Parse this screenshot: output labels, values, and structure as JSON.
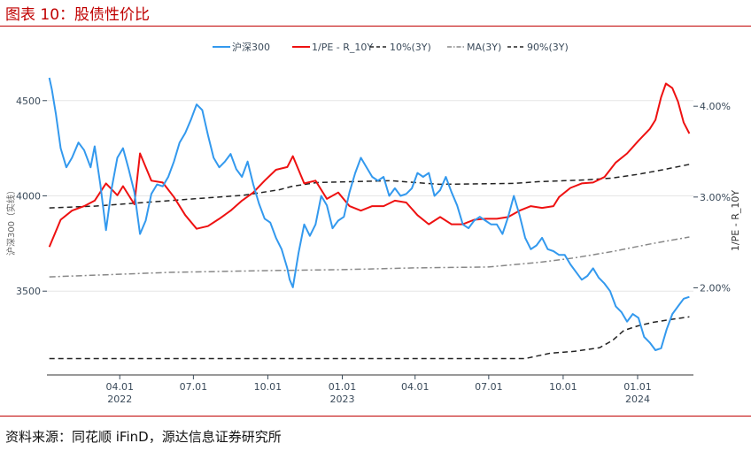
{
  "figure": {
    "title": "图表 10：股债性价比",
    "source": "资料来源：同花顺 iFinD，源达信息证券研究所"
  },
  "colors": {
    "title_red": "#c00000",
    "csi300": "#3399ee",
    "ey_spread": "#ee1111",
    "band_dash": "#222222",
    "ma_dashdot": "#888888"
  },
  "chart_data": {
    "type": "line",
    "xlabel": "",
    "ylabel_left": "沪深300（实线）",
    "ylabel_right": "1/PE - R_10Y",
    "xlim": [
      "2022-01-01",
      "2024-03-10"
    ],
    "ylim_left": [
      3060,
      4680
    ],
    "ylim_right": [
      0.0104,
      0.0444
    ],
    "y_left_ticks": [
      3500,
      4000,
      4500
    ],
    "y_left_tick_labels": [
      "3500",
      "4000",
      "4500"
    ],
    "y_right_ticks": [
      0.02,
      0.03,
      0.04
    ],
    "y_right_tick_labels": [
      "2.00%",
      "3.00%",
      "4.00%"
    ],
    "x_ticks": [
      {
        "date": "2022-04-01",
        "label": "04.01",
        "year": "2022"
      },
      {
        "date": "2022-07-01",
        "label": "07.01",
        "year": ""
      },
      {
        "date": "2022-10-01",
        "label": "10.01",
        "year": ""
      },
      {
        "date": "2023-01-01",
        "label": "01.01",
        "year": "2023"
      },
      {
        "date": "2023-04-01",
        "label": "04.01",
        "year": ""
      },
      {
        "date": "2023-07-01",
        "label": "07.01",
        "year": ""
      },
      {
        "date": "2023-10-01",
        "label": "10.01",
        "year": ""
      },
      {
        "date": "2024-01-01",
        "label": "01.01",
        "year": "2024"
      }
    ],
    "grid": {
      "horizontal": true,
      "vertical": false
    },
    "legend_position": "top",
    "series": [
      {
        "name": "沪深300",
        "axis": "left",
        "style": "solid",
        "color": "#3399ee",
        "points": [
          [
            "2022-01-04",
            4620
          ],
          [
            "2022-01-07",
            4560
          ],
          [
            "2022-01-12",
            4430
          ],
          [
            "2022-01-18",
            4250
          ],
          [
            "2022-01-25",
            4150
          ],
          [
            "2022-02-01",
            4200
          ],
          [
            "2022-02-09",
            4280
          ],
          [
            "2022-02-16",
            4240
          ],
          [
            "2022-02-24",
            4150
          ],
          [
            "2022-03-01",
            4260
          ],
          [
            "2022-03-08",
            4060
          ],
          [
            "2022-03-15",
            3820
          ],
          [
            "2022-03-22",
            4040
          ],
          [
            "2022-03-29",
            4200
          ],
          [
            "2022-04-05",
            4250
          ],
          [
            "2022-04-12",
            4140
          ],
          [
            "2022-04-19",
            4020
          ],
          [
            "2022-04-26",
            3800
          ],
          [
            "2022-05-03",
            3870
          ],
          [
            "2022-05-10",
            4010
          ],
          [
            "2022-05-17",
            4060
          ],
          [
            "2022-05-24",
            4050
          ],
          [
            "2022-05-31",
            4100
          ],
          [
            "2022-06-07",
            4180
          ],
          [
            "2022-06-14",
            4280
          ],
          [
            "2022-06-21",
            4330
          ],
          [
            "2022-06-28",
            4400
          ],
          [
            "2022-07-05",
            4480
          ],
          [
            "2022-07-12",
            4450
          ],
          [
            "2022-07-19",
            4320
          ],
          [
            "2022-07-26",
            4200
          ],
          [
            "2022-08-02",
            4150
          ],
          [
            "2022-08-09",
            4180
          ],
          [
            "2022-08-16",
            4220
          ],
          [
            "2022-08-23",
            4140
          ],
          [
            "2022-08-30",
            4100
          ],
          [
            "2022-09-06",
            4180
          ],
          [
            "2022-09-13",
            4060
          ],
          [
            "2022-09-20",
            3960
          ],
          [
            "2022-09-27",
            3880
          ],
          [
            "2022-10-04",
            3860
          ],
          [
            "2022-10-11",
            3780
          ],
          [
            "2022-10-18",
            3720
          ],
          [
            "2022-10-25",
            3620
          ],
          [
            "2022-10-28",
            3560
          ],
          [
            "2022-11-01",
            3520
          ],
          [
            "2022-11-08",
            3700
          ],
          [
            "2022-11-15",
            3850
          ],
          [
            "2022-11-22",
            3790
          ],
          [
            "2022-11-29",
            3850
          ],
          [
            "2022-12-06",
            4000
          ],
          [
            "2022-12-13",
            3950
          ],
          [
            "2022-12-20",
            3830
          ],
          [
            "2022-12-27",
            3870
          ],
          [
            "2023-01-03",
            3890
          ],
          [
            "2023-01-10",
            4020
          ],
          [
            "2023-01-17",
            4120
          ],
          [
            "2023-01-24",
            4200
          ],
          [
            "2023-01-31",
            4150
          ],
          [
            "2023-02-07",
            4100
          ],
          [
            "2023-02-14",
            4080
          ],
          [
            "2023-02-21",
            4100
          ],
          [
            "2023-02-28",
            4000
          ],
          [
            "2023-03-07",
            4040
          ],
          [
            "2023-03-14",
            4000
          ],
          [
            "2023-03-21",
            4010
          ],
          [
            "2023-03-28",
            4040
          ],
          [
            "2023-04-04",
            4120
          ],
          [
            "2023-04-11",
            4100
          ],
          [
            "2023-04-18",
            4120
          ],
          [
            "2023-04-25",
            4000
          ],
          [
            "2023-05-02",
            4030
          ],
          [
            "2023-05-09",
            4100
          ],
          [
            "2023-05-16",
            4020
          ],
          [
            "2023-05-23",
            3950
          ],
          [
            "2023-05-30",
            3850
          ],
          [
            "2023-06-06",
            3830
          ],
          [
            "2023-06-13",
            3870
          ],
          [
            "2023-06-20",
            3890
          ],
          [
            "2023-06-27",
            3870
          ],
          [
            "2023-07-04",
            3850
          ],
          [
            "2023-07-11",
            3850
          ],
          [
            "2023-07-18",
            3800
          ],
          [
            "2023-07-25",
            3890
          ],
          [
            "2023-08-01",
            4000
          ],
          [
            "2023-08-08",
            3900
          ],
          [
            "2023-08-15",
            3780
          ],
          [
            "2023-08-22",
            3720
          ],
          [
            "2023-08-29",
            3740
          ],
          [
            "2023-09-05",
            3780
          ],
          [
            "2023-09-12",
            3720
          ],
          [
            "2023-09-19",
            3710
          ],
          [
            "2023-09-26",
            3690
          ],
          [
            "2023-10-03",
            3690
          ],
          [
            "2023-10-10",
            3640
          ],
          [
            "2023-10-17",
            3600
          ],
          [
            "2023-10-24",
            3560
          ],
          [
            "2023-10-31",
            3580
          ],
          [
            "2023-11-07",
            3620
          ],
          [
            "2023-11-14",
            3570
          ],
          [
            "2023-11-21",
            3540
          ],
          [
            "2023-11-28",
            3500
          ],
          [
            "2023-12-05",
            3420
          ],
          [
            "2023-12-12",
            3390
          ],
          [
            "2023-12-19",
            3340
          ],
          [
            "2023-12-26",
            3380
          ],
          [
            "2024-01-02",
            3360
          ],
          [
            "2024-01-09",
            3260
          ],
          [
            "2024-01-16",
            3230
          ],
          [
            "2024-01-23",
            3190
          ],
          [
            "2024-01-30",
            3200
          ],
          [
            "2024-02-06",
            3300
          ],
          [
            "2024-02-13",
            3380
          ],
          [
            "2024-02-20",
            3420
          ],
          [
            "2024-02-27",
            3460
          ],
          [
            "2024-03-05",
            3470
          ]
        ]
      },
      {
        "name": "1/PE - R_10Y",
        "axis": "right",
        "style": "solid",
        "color": "#ee1111",
        "points": [
          [
            "2022-01-04",
            0.0245
          ],
          [
            "2022-01-18",
            0.0275
          ],
          [
            "2022-02-01",
            0.0285
          ],
          [
            "2022-02-16",
            0.029
          ],
          [
            "2022-03-01",
            0.0296
          ],
          [
            "2022-03-15",
            0.0315
          ],
          [
            "2022-03-29",
            0.0302
          ],
          [
            "2022-04-05",
            0.0312
          ],
          [
            "2022-04-19",
            0.0292
          ],
          [
            "2022-04-26",
            0.0348
          ],
          [
            "2022-05-10",
            0.0318
          ],
          [
            "2022-05-24",
            0.0316
          ],
          [
            "2022-06-07",
            0.03
          ],
          [
            "2022-06-21",
            0.028
          ],
          [
            "2022-07-05",
            0.0265
          ],
          [
            "2022-07-19",
            0.0268
          ],
          [
            "2022-08-02",
            0.0276
          ],
          [
            "2022-08-16",
            0.0285
          ],
          [
            "2022-08-30",
            0.0296
          ],
          [
            "2022-09-13",
            0.0305
          ],
          [
            "2022-09-27",
            0.0318
          ],
          [
            "2022-10-11",
            0.033
          ],
          [
            "2022-10-25",
            0.0333
          ],
          [
            "2022-11-01",
            0.0345
          ],
          [
            "2022-11-15",
            0.0315
          ],
          [
            "2022-11-29",
            0.0318
          ],
          [
            "2022-12-13",
            0.0298
          ],
          [
            "2022-12-27",
            0.0305
          ],
          [
            "2023-01-10",
            0.029
          ],
          [
            "2023-01-24",
            0.0285
          ],
          [
            "2023-02-07",
            0.029
          ],
          [
            "2023-02-21",
            0.029
          ],
          [
            "2023-03-07",
            0.0296
          ],
          [
            "2023-03-21",
            0.0294
          ],
          [
            "2023-04-04",
            0.028
          ],
          [
            "2023-04-18",
            0.027
          ],
          [
            "2023-05-02",
            0.0278
          ],
          [
            "2023-05-16",
            0.027
          ],
          [
            "2023-05-30",
            0.027
          ],
          [
            "2023-06-13",
            0.0275
          ],
          [
            "2023-06-27",
            0.0276
          ],
          [
            "2023-07-11",
            0.0276
          ],
          [
            "2023-07-25",
            0.0278
          ],
          [
            "2023-08-08",
            0.0285
          ],
          [
            "2023-08-22",
            0.029
          ],
          [
            "2023-09-05",
            0.0288
          ],
          [
            "2023-09-19",
            0.029
          ],
          [
            "2023-09-26",
            0.03
          ],
          [
            "2023-10-10",
            0.031
          ],
          [
            "2023-10-24",
            0.0315
          ],
          [
            "2023-11-07",
            0.0316
          ],
          [
            "2023-11-21",
            0.0322
          ],
          [
            "2023-12-05",
            0.0338
          ],
          [
            "2023-12-19",
            0.0348
          ],
          [
            "2024-01-02",
            0.0362
          ],
          [
            "2024-01-16",
            0.0375
          ],
          [
            "2024-01-23",
            0.0385
          ],
          [
            "2024-01-30",
            0.041
          ],
          [
            "2024-02-05",
            0.0425
          ],
          [
            "2024-02-13",
            0.042
          ],
          [
            "2024-02-20",
            0.0405
          ],
          [
            "2024-02-27",
            0.0382
          ],
          [
            "2024-03-05",
            0.037
          ]
        ]
      },
      {
        "name": "10%(3Y)",
        "axis": "right",
        "style": "dashed",
        "color": "#222222",
        "points": [
          [
            "2022-01-04",
            0.0122
          ],
          [
            "2023-08-15",
            0.0122
          ],
          [
            "2023-09-15",
            0.0128
          ],
          [
            "2023-10-15",
            0.013
          ],
          [
            "2023-11-15",
            0.0134
          ],
          [
            "2023-12-01",
            0.0142
          ],
          [
            "2023-12-15",
            0.0153
          ],
          [
            "2024-01-01",
            0.0158
          ],
          [
            "2024-01-20",
            0.0162
          ],
          [
            "2024-02-10",
            0.0165
          ],
          [
            "2024-03-05",
            0.0168
          ]
        ]
      },
      {
        "name": "MA(3Y)",
        "axis": "right",
        "style": "dashdot",
        "color": "#888888",
        "points": [
          [
            "2022-01-04",
            0.0212
          ],
          [
            "2022-06-01",
            0.0217
          ],
          [
            "2022-10-01",
            0.0219
          ],
          [
            "2023-01-01",
            0.022
          ],
          [
            "2023-04-01",
            0.0222
          ],
          [
            "2023-07-01",
            0.0223
          ],
          [
            "2023-09-01",
            0.0228
          ],
          [
            "2023-10-15",
            0.0233
          ],
          [
            "2023-12-01",
            0.024
          ],
          [
            "2024-01-15",
            0.0248
          ],
          [
            "2024-03-05",
            0.0256
          ]
        ]
      },
      {
        "name": "90%(3Y)",
        "axis": "right",
        "style": "dashed",
        "color": "#222222",
        "points": [
          [
            "2022-01-04",
            0.0288
          ],
          [
            "2022-03-01",
            0.029
          ],
          [
            "2022-05-01",
            0.0294
          ],
          [
            "2022-07-01",
            0.0298
          ],
          [
            "2022-09-01",
            0.0302
          ],
          [
            "2022-10-15",
            0.0308
          ],
          [
            "2022-11-01",
            0.0312
          ],
          [
            "2022-12-01",
            0.0316
          ],
          [
            "2023-03-01",
            0.0318
          ],
          [
            "2023-04-01",
            0.0316
          ],
          [
            "2023-05-01",
            0.0314
          ],
          [
            "2023-08-01",
            0.0315
          ],
          [
            "2023-09-01",
            0.0317
          ],
          [
            "2023-11-01",
            0.0319
          ],
          [
            "2023-12-01",
            0.0321
          ],
          [
            "2024-01-01",
            0.0325
          ],
          [
            "2024-02-01",
            0.033
          ],
          [
            "2024-03-05",
            0.0336
          ]
        ]
      }
    ]
  }
}
